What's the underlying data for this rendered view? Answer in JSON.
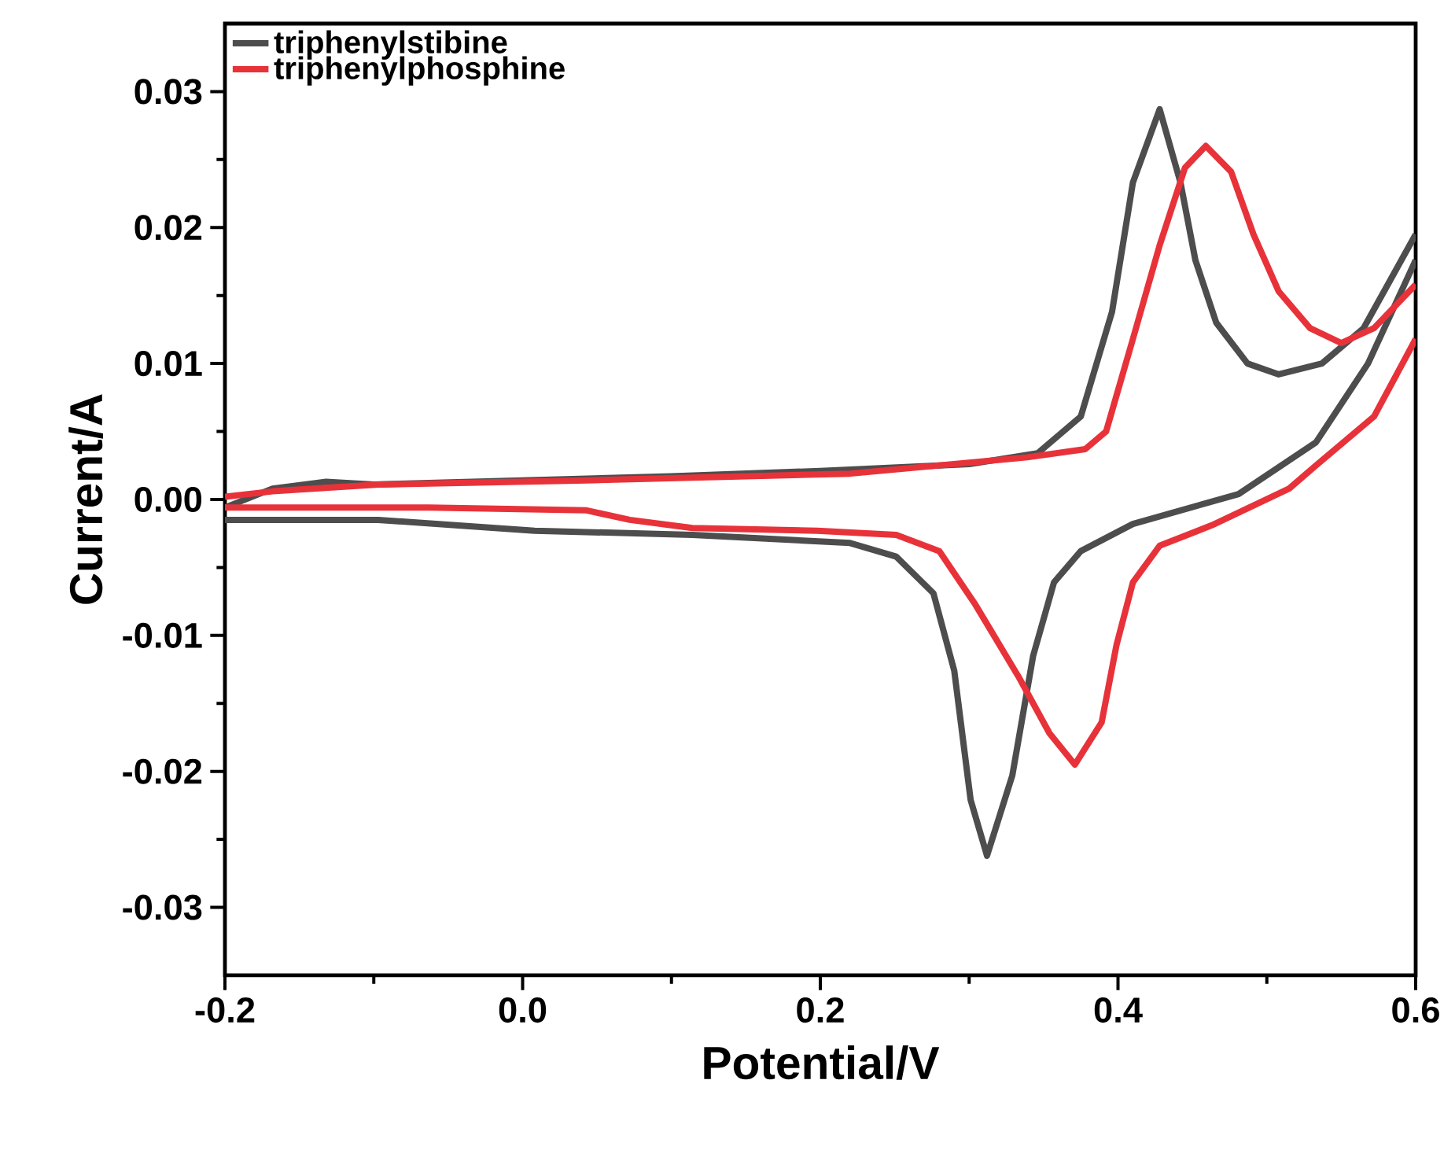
{
  "chart_data": {
    "type": "line",
    "xlabel": "Potential/V",
    "ylabel": "Current/A",
    "xlim": [
      -0.2,
      0.6
    ],
    "ylim": [
      -0.035,
      0.035
    ],
    "xticks": [
      -0.2,
      {
        "value": -0.1,
        "label": null
      },
      {
        "value": 0,
        "label": "0.0"
      },
      {
        "value": 0.1,
        "label": null
      },
      0.2,
      {
        "value": 0.3,
        "label": null
      },
      0.4,
      {
        "value": 0.5,
        "label": null
      },
      0.6
    ],
    "yticks": [
      -0.03,
      {
        "value": -0.025,
        "label": null
      },
      -0.02,
      {
        "value": -0.015,
        "label": null
      },
      -0.01,
      {
        "value": -0.005,
        "label": null
      },
      {
        "value": 0,
        "label": "0.00"
      },
      {
        "value": 0.005,
        "label": null
      },
      0.01,
      {
        "value": 0.015,
        "label": null
      },
      0.02,
      {
        "value": 0.025,
        "label": null
      },
      0.03
    ],
    "legend": "top left",
    "marker": "none",
    "line_style": "solid",
    "grid": false,
    "series": [
      {
        "name": "triphenylstibine",
        "color": "#4d4d4d",
        "x": [
          -0.2,
          -0.168,
          -0.132,
          -0.1,
          0.0,
          0.1,
          0.2,
          0.3,
          0.346,
          0.375,
          0.396,
          0.41,
          0.428,
          0.442,
          0.452,
          0.466,
          0.487,
          0.508,
          0.537,
          0.565,
          0.6
        ],
        "values": [
          -0.0006,
          0.0008,
          0.0013,
          0.0011,
          0.0014,
          0.0017,
          0.0021,
          0.0026,
          0.0034,
          0.0061,
          0.0138,
          0.0233,
          0.0287,
          0.0233,
          0.0176,
          0.013,
          0.01,
          0.0092,
          0.01,
          0.0126,
          0.0195
        ]
      },
      {
        "color": "#4d4d4d",
        "x": [
          -0.2,
          -0.097,
          -0.045,
          0.008,
          0.114,
          0.22,
          0.251,
          0.276,
          0.29,
          0.301,
          0.312,
          0.329,
          0.343,
          0.357,
          0.375,
          0.41,
          0.481,
          0.533,
          0.568,
          0.6
        ],
        "values": [
          -0.0015,
          -0.0015,
          -0.0019,
          -0.0023,
          -0.0026,
          -0.0032,
          -0.0042,
          -0.0069,
          -0.0126,
          -0.0221,
          -0.0262,
          -0.0203,
          -0.0115,
          -0.0061,
          -0.0038,
          -0.0018,
          0.0004,
          0.0042,
          0.01,
          0.0176
        ]
      },
      {
        "name": "triphenylphosphine",
        "color": "#e8323a",
        "x": [
          -0.2,
          -0.168,
          -0.097,
          0.043,
          0.22,
          0.339,
          0.378,
          0.392,
          0.41,
          0.428,
          0.445,
          0.459,
          0.476,
          0.491,
          0.508,
          0.529,
          0.55,
          0.572,
          0.6
        ],
        "values": [
          0.0002,
          0.0006,
          0.0011,
          0.0014,
          0.0019,
          0.0031,
          0.0037,
          0.005,
          0.0118,
          0.0187,
          0.0244,
          0.026,
          0.0241,
          0.0195,
          0.0153,
          0.0126,
          0.0115,
          0.0126,
          0.0158
        ]
      },
      {
        "color": "#e8323a",
        "x": [
          -0.2,
          -0.063,
          0.043,
          0.072,
          0.114,
          0.198,
          0.251,
          0.28,
          0.304,
          0.333,
          0.354,
          0.371,
          0.389,
          0.399,
          0.41,
          0.428,
          0.463,
          0.515,
          0.533,
          0.572,
          0.6
        ],
        "values": [
          -0.0006,
          -0.0006,
          -0.0008,
          -0.0015,
          -0.0021,
          -0.0023,
          -0.0026,
          -0.0038,
          -0.0077,
          -0.013,
          -0.0172,
          -0.0195,
          -0.0164,
          -0.0107,
          -0.0061,
          -0.0034,
          -0.0019,
          0.0008,
          0.0025,
          0.0061,
          0.0118
        ]
      }
    ]
  }
}
